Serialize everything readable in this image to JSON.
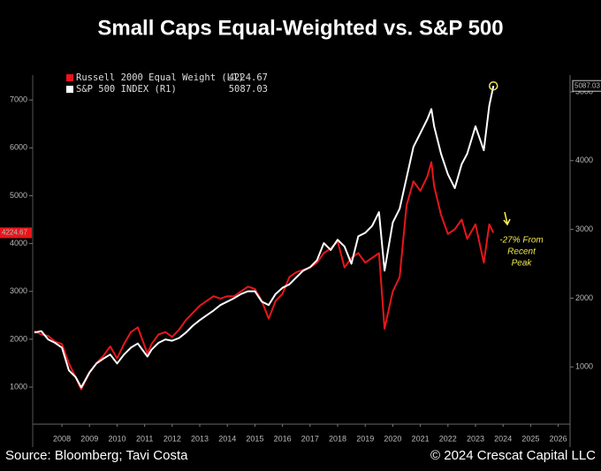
{
  "chart_data": {
    "type": "line",
    "title": "Small Caps Equal-Weighted vs. S&P 500",
    "source": "Source: Bloomberg; Tavi Costa",
    "copyright": "© 2024 Crescat Capital LLC",
    "annotation": [
      "-27% From",
      "Recent",
      "Peak"
    ],
    "annotation_color": "#f2e94e",
    "x": [
      2007.5,
      2007.75,
      2008,
      2008.25,
      2008.5,
      2008.75,
      2009,
      2009.2,
      2009.5,
      2009.75,
      2010,
      2010.25,
      2010.5,
      2010.75,
      2011,
      2011.25,
      2011.6,
      2011.75,
      2012,
      2012.25,
      2012.5,
      2012.75,
      2013,
      2013.25,
      2013.5,
      2013.75,
      2014,
      2014.25,
      2014.5,
      2014.75,
      2015,
      2015.25,
      2015.5,
      2015.75,
      2016,
      2016.25,
      2016.5,
      2016.75,
      2017,
      2017.25,
      2017.5,
      2017.75,
      2018,
      2018.25,
      2018.5,
      2018.75,
      2019,
      2019.25,
      2019.5,
      2019.75,
      2020,
      2020.2,
      2020.5,
      2020.75,
      2021,
      2021.25,
      2021.5,
      2021.75,
      2021.9,
      2022,
      2022.25,
      2022.5,
      2022.75,
      2023,
      2023.2,
      2023.5,
      2023.8,
      2024,
      2024.15
    ],
    "xlim": [
      2007.44,
      2026.93
    ],
    "xticks": [
      {
        "value": 2008.5,
        "label": "2008"
      },
      {
        "value": 2009.5,
        "label": "2009"
      },
      {
        "value": 2010.5,
        "label": "2010"
      },
      {
        "value": 2011.5,
        "label": "2011"
      },
      {
        "value": 2012.5,
        "label": "2012"
      },
      {
        "value": 2013.5,
        "label": "2013"
      },
      {
        "value": 2014.5,
        "label": "2014"
      },
      {
        "value": 2015.5,
        "label": "2015"
      },
      {
        "value": 2016.5,
        "label": "2016"
      },
      {
        "value": 2017.5,
        "label": "2017"
      },
      {
        "value": 2018.5,
        "label": "2018"
      },
      {
        "value": 2019.5,
        "label": "2019"
      },
      {
        "value": 2020.5,
        "label": "2020"
      },
      {
        "value": 2021.5,
        "label": "2021"
      },
      {
        "value": 2022.5,
        "label": "2022"
      },
      {
        "value": 2023.5,
        "label": "2023"
      },
      {
        "value": 2024.5,
        "label": "2024"
      },
      {
        "value": 2025.5,
        "label": "2025"
      },
      {
        "value": 2026.5,
        "label": "2026"
      }
    ],
    "ylim": [
      225,
      7520
    ],
    "yticks": [
      1000,
      2000,
      3000,
      4000,
      5000,
      6000,
      7000
    ],
    "y2lim": [
      167,
      5244
    ],
    "y2ticks": [
      1000,
      2000,
      3000,
      4000,
      5000
    ],
    "series": [
      {
        "name": "Russell 2000 Equal Weight  (L1)",
        "color": "#e8161b",
        "axis": "y",
        "values": [
          2170,
          2100,
          2070,
          1950,
          1900,
          1500,
          1200,
          950,
          1300,
          1500,
          1650,
          1850,
          1600,
          1900,
          2150,
          2250,
          1700,
          1900,
          2100,
          2150,
          2050,
          2200,
          2400,
          2550,
          2700,
          2800,
          2900,
          2850,
          2900,
          2900,
          3000,
          3100,
          3050,
          2800,
          2430,
          2800,
          2950,
          3300,
          3400,
          3450,
          3500,
          3600,
          3800,
          3900,
          4050,
          3500,
          3700,
          3800,
          3600,
          3700,
          3800,
          2220,
          3000,
          3300,
          4800,
          5300,
          5100,
          5400,
          5700,
          5200,
          4600,
          4200,
          4300,
          4500,
          4100,
          4400,
          3600,
          4400,
          4224.67
        ]
      },
      {
        "name": "S&P 500 INDEX  (R1)",
        "color": "#ffffff",
        "axis": "y2",
        "values": [
          1500,
          1520,
          1400,
          1350,
          1280,
          950,
          850,
          700,
          920,
          1050,
          1120,
          1180,
          1050,
          1180,
          1280,
          1340,
          1150,
          1250,
          1350,
          1400,
          1380,
          1420,
          1500,
          1600,
          1680,
          1750,
          1820,
          1900,
          1950,
          2000,
          2060,
          2100,
          2100,
          1950,
          1900,
          2060,
          2150,
          2200,
          2300,
          2400,
          2450,
          2550,
          2800,
          2700,
          2850,
          2750,
          2500,
          2900,
          2950,
          3050,
          3250,
          2400,
          3100,
          3300,
          3750,
          4200,
          4400,
          4600,
          4750,
          4500,
          4100,
          3800,
          3600,
          3950,
          4100,
          4500,
          4150,
          4800,
          5087.03
        ]
      }
    ]
  }
}
